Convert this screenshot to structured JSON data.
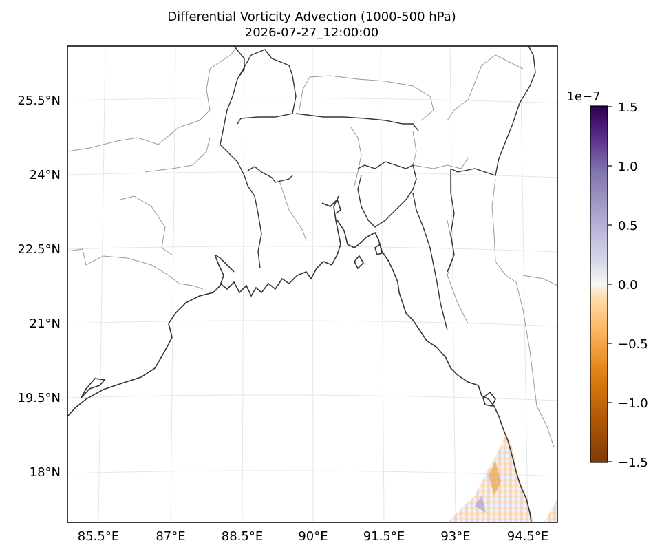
{
  "title": "Differential Vorticity Advection (1000-500 hPa)",
  "subtitle": "2026-07-27_12:00:00",
  "map": {
    "lat_labels": [
      "25.5°N",
      "24°N",
      "22.5°N",
      "21°N",
      "19.5°N",
      "18°N"
    ],
    "lon_labels": [
      "85.5°E",
      "87°E",
      "88.5°E",
      "90°E",
      "91.5°E",
      "93°E",
      "94.5°E"
    ],
    "gridlines": true,
    "projection": "Lambert conformal (curved graticule)"
  },
  "colorbar": {
    "scale_label": "1e−7",
    "tick_labels": [
      "1.5",
      "1.0",
      "0.5",
      "0.0",
      "−0.5",
      "−1.0",
      "−1.5"
    ],
    "range": [
      -1.5,
      1.5
    ],
    "colormap": [
      "#7f3b08",
      "#e08214",
      "#fdb863",
      "#fee0b6",
      "#f7f7f7",
      "#d8daeb",
      "#b2abd2",
      "#8073ac",
      "#2d004b"
    ]
  },
  "colors": {
    "coastline": "#333333",
    "borders": "#999999",
    "grid": "#e6e6e6"
  }
}
